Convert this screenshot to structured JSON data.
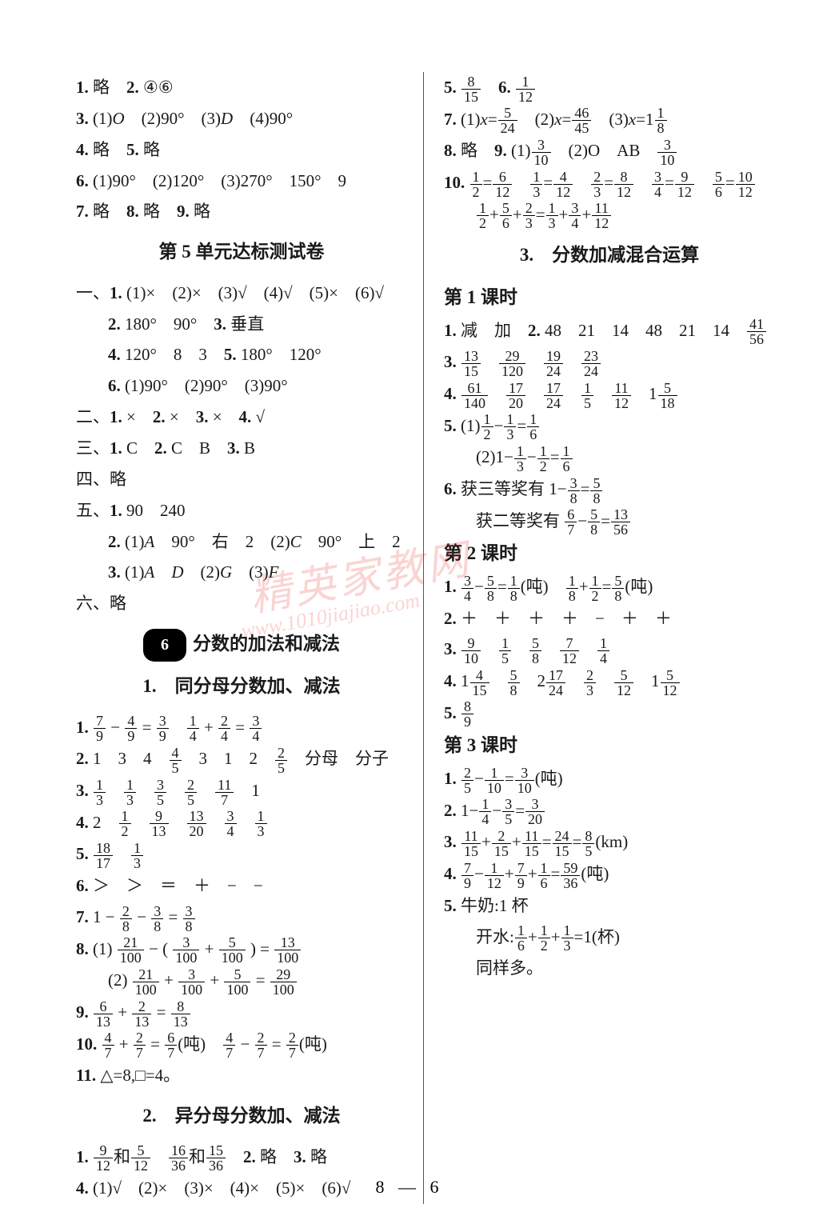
{
  "footer": "8 — 6",
  "watermark_main": "精英家教网",
  "watermark_sub": "www.1010jiajiao.com",
  "left": {
    "l1": "1. 略　2. ④⑥",
    "l2": "3. (1)O　(2)90°　(3)D　(4)90°",
    "l3": "4. 略　5. 略",
    "l4": "6. (1)90°　(2)120°　(3)270°　150°　9",
    "l5": "7. 略　8. 略　9. 略",
    "h1": "第 5 单元达标测试卷",
    "l6": "一、1. (1)×　(2)×　(3)√　(4)√　(5)×　(6)√",
    "l7": "2. 180°　90°　3. 垂直",
    "l8": "4. 120°　8　3　5. 180°　120°",
    "l9": "6. (1)90°　(2)90°　(3)90°",
    "l10": "二、1. ×　2. ×　3. ×　4. √",
    "l11": "三、1. C　2. C　B　3. B",
    "l12": "四、略",
    "l13": "五、1. 90　240",
    "l14": "2. (1)A　90°　右　2　(2)C　90°　上　2",
    "l15": "3. (1)A　D　(2)G　(3)F",
    "l16": "六、略",
    "h2_pill": "6",
    "h2_text": "分数的加法和减法",
    "h3": "1.　同分母分数加、减法",
    "h4": "2.　异分母分数加、减法"
  },
  "right": {
    "h5": "3.　分数加减混合运算",
    "k1": "第 1 课时",
    "k2": "第 2 课时",
    "k3": "第 3 课时"
  }
}
